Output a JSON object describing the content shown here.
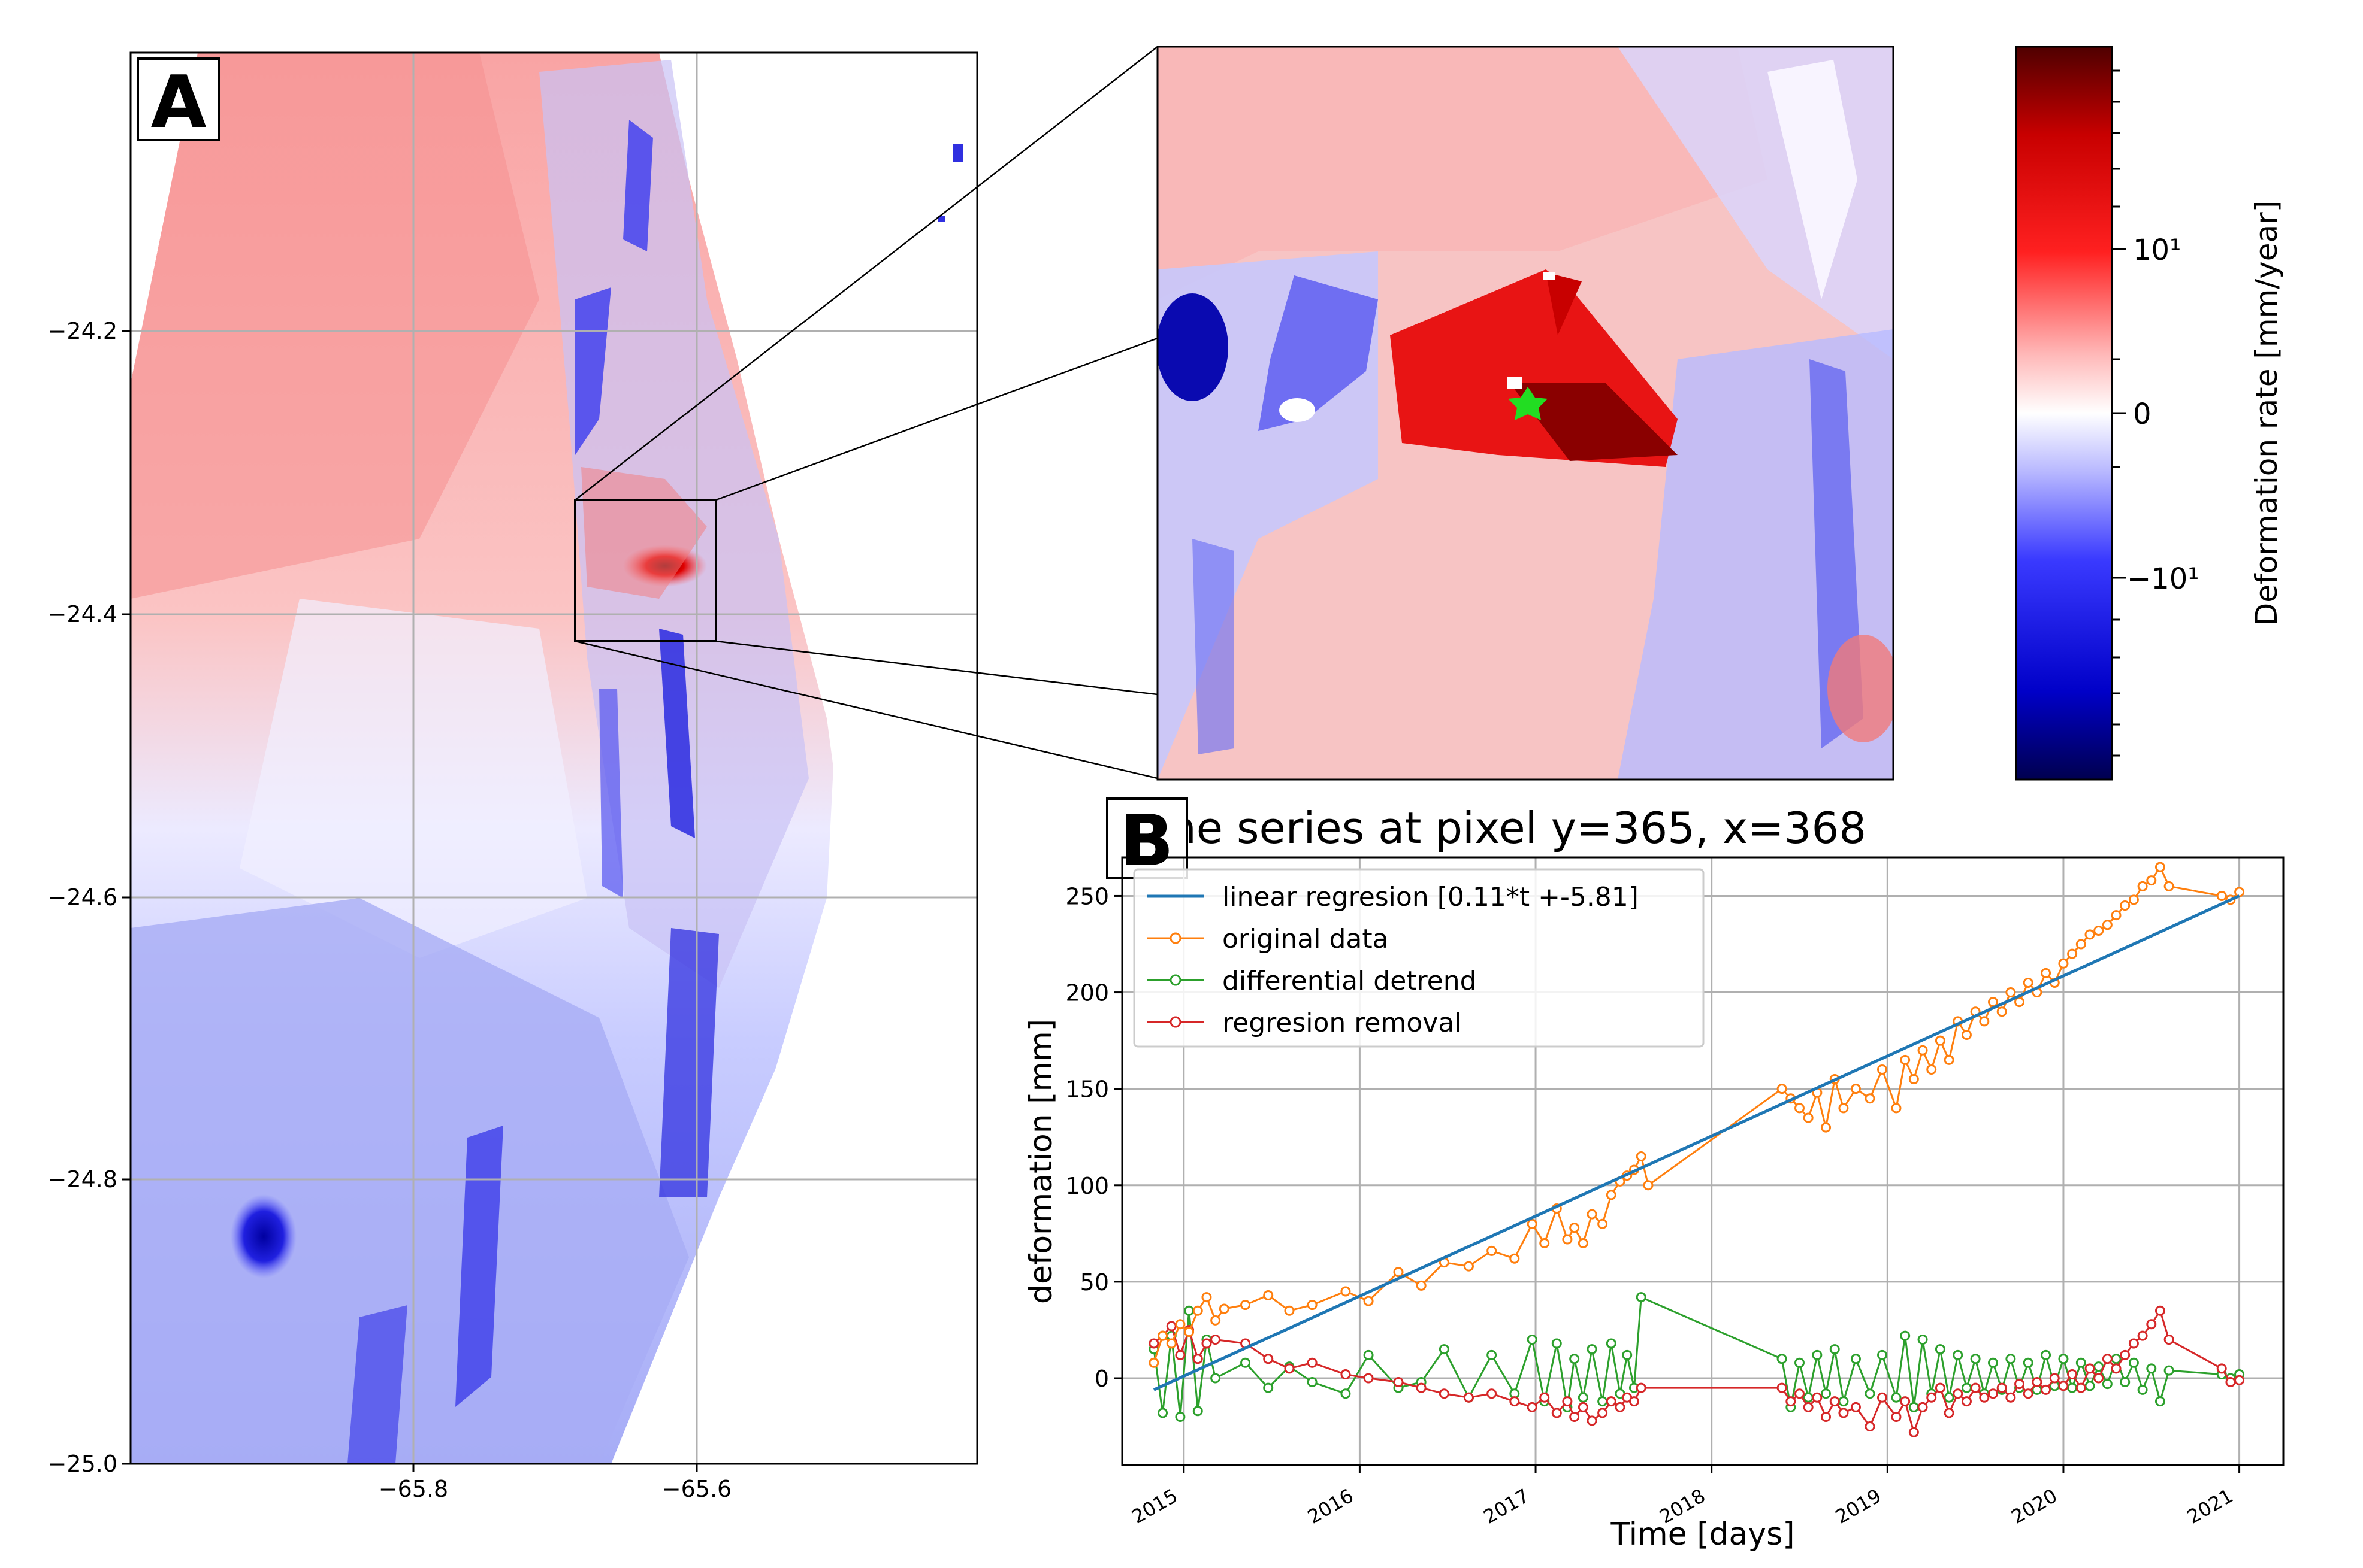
{
  "colors": {
    "red": "#d40000",
    "blue": "#1a1aff",
    "regression_line": "#1f77b4",
    "original": "#ff7f0e",
    "differential": "#2ca02c",
    "removal": "#d62728",
    "marker_green": "#22dd22"
  },
  "panel_a": {
    "label": "A",
    "y_ticks": [
      "−24.2",
      "−24.4",
      "−24.6",
      "−24.8",
      "−25.0"
    ],
    "x_ticks": [
      "−65.8",
      "−65.6"
    ]
  },
  "colorbar": {
    "label": "Deformation rate [mm/year]",
    "ticks": [
      "10¹",
      "0",
      "−10¹"
    ],
    "scale": "symlog"
  },
  "chart_data": {
    "type": "line",
    "panel_label": "B",
    "title": "Time series at pixel y=365, x=368",
    "xlabel": "Time [days]",
    "ylabel": "deformation [mm]",
    "x_ticks": [
      "2015",
      "2016",
      "2017",
      "2018",
      "2019",
      "2020",
      "2021"
    ],
    "xlim": [
      2014.65,
      2021.25
    ],
    "ylim": [
      -45,
      270
    ],
    "y_ticks": [
      0,
      50,
      100,
      150,
      200,
      250
    ],
    "grid": true,
    "legend": "upper-left",
    "series": [
      {
        "name": "linear regresion [0.11*t +-5.81]",
        "marker": "none",
        "x": [
          2014.83,
          2021.0
        ],
        "y": [
          -6,
          250
        ]
      },
      {
        "name": "original data",
        "marker": "circle",
        "x": [
          2014.83,
          2014.88,
          2014.93,
          2014.98,
          2015.03,
          2015.08,
          2015.13,
          2015.18,
          2015.23,
          2015.35,
          2015.48,
          2015.6,
          2015.73,
          2015.92,
          2016.05,
          2016.22,
          2016.35,
          2016.48,
          2016.62,
          2016.75,
          2016.88,
          2016.98,
          2017.05,
          2017.12,
          2017.18,
          2017.22,
          2017.27,
          2017.32,
          2017.38,
          2017.43,
          2017.48,
          2017.52,
          2017.56,
          2017.6,
          2017.64,
          2018.4,
          2018.45,
          2018.5,
          2018.55,
          2018.6,
          2018.65,
          2018.7,
          2018.75,
          2018.82,
          2018.9,
          2018.97,
          2019.05,
          2019.1,
          2019.15,
          2019.2,
          2019.25,
          2019.3,
          2019.35,
          2019.4,
          2019.45,
          2019.5,
          2019.55,
          2019.6,
          2019.65,
          2019.7,
          2019.75,
          2019.8,
          2019.85,
          2019.9,
          2019.95,
          2020.0,
          2020.05,
          2020.1,
          2020.15,
          2020.2,
          2020.25,
          2020.3,
          2020.35,
          2020.4,
          2020.45,
          2020.5,
          2020.55,
          2020.6,
          2020.9,
          2020.95,
          2021.0
        ],
        "y": [
          8,
          22,
          18,
          28,
          24,
          35,
          42,
          30,
          36,
          38,
          43,
          35,
          38,
          45,
          40,
          55,
          48,
          60,
          58,
          66,
          62,
          80,
          70,
          88,
          72,
          78,
          70,
          85,
          80,
          95,
          102,
          105,
          108,
          115,
          100,
          150,
          145,
          140,
          135,
          148,
          130,
          155,
          140,
          150,
          145,
          160,
          140,
          165,
          155,
          170,
          160,
          175,
          165,
          185,
          178,
          190,
          185,
          195,
          190,
          200,
          195,
          205,
          200,
          210,
          205,
          215,
          220,
          225,
          230,
          232,
          235,
          240,
          245,
          248,
          255,
          258,
          265,
          255,
          250,
          248,
          252
        ]
      },
      {
        "name": "differential detrend",
        "marker": "circle",
        "x": [
          2014.83,
          2014.88,
          2014.93,
          2014.98,
          2015.03,
          2015.08,
          2015.13,
          2015.18,
          2015.35,
          2015.48,
          2015.6,
          2015.73,
          2015.92,
          2016.05,
          2016.22,
          2016.35,
          2016.48,
          2016.62,
          2016.75,
          2016.88,
          2016.98,
          2017.05,
          2017.12,
          2017.18,
          2017.22,
          2017.27,
          2017.32,
          2017.38,
          2017.43,
          2017.48,
          2017.52,
          2017.56,
          2017.6,
          2018.4,
          2018.45,
          2018.5,
          2018.55,
          2018.6,
          2018.65,
          2018.7,
          2018.75,
          2018.82,
          2018.9,
          2018.97,
          2019.05,
          2019.1,
          2019.15,
          2019.2,
          2019.25,
          2019.3,
          2019.35,
          2019.4,
          2019.45,
          2019.5,
          2019.55,
          2019.6,
          2019.65,
          2019.7,
          2019.75,
          2019.8,
          2019.85,
          2019.9,
          2019.95,
          2020.0,
          2020.05,
          2020.1,
          2020.15,
          2020.2,
          2020.25,
          2020.3,
          2020.35,
          2020.4,
          2020.45,
          2020.5,
          2020.55,
          2020.6,
          2020.9,
          2020.95,
          2021.0
        ],
        "y": [
          15,
          -18,
          22,
          -20,
          35,
          -17,
          20,
          0,
          8,
          -5,
          6,
          -2,
          -8,
          12,
          -5,
          -2,
          15,
          -10,
          12,
          -8,
          20,
          -12,
          18,
          -15,
          10,
          -10,
          15,
          -12,
          18,
          -8,
          12,
          -5,
          42,
          10,
          -15,
          8,
          -10,
          12,
          -8,
          15,
          -12,
          10,
          -8,
          12,
          -10,
          22,
          -15,
          20,
          -8,
          15,
          -10,
          12,
          -5,
          10,
          -8,
          8,
          -6,
          10,
          -5,
          8,
          -6,
          12,
          -4,
          10,
          -5,
          8,
          -4,
          6,
          -3,
          10,
          -2,
          8,
          -6,
          5,
          -12,
          4,
          2,
          0,
          2
        ]
      },
      {
        "name": "regresion removal",
        "marker": "circle",
        "x": [
          2014.83,
          2014.88,
          2014.93,
          2014.98,
          2015.03,
          2015.08,
          2015.13,
          2015.18,
          2015.35,
          2015.48,
          2015.6,
          2015.73,
          2015.92,
          2016.05,
          2016.22,
          2016.35,
          2016.48,
          2016.62,
          2016.75,
          2016.88,
          2016.98,
          2017.05,
          2017.12,
          2017.18,
          2017.22,
          2017.27,
          2017.32,
          2017.38,
          2017.43,
          2017.48,
          2017.52,
          2017.56,
          2017.6,
          2018.4,
          2018.45,
          2018.5,
          2018.55,
          2018.6,
          2018.65,
          2018.7,
          2018.75,
          2018.82,
          2018.9,
          2018.97,
          2019.05,
          2019.1,
          2019.15,
          2019.2,
          2019.25,
          2019.3,
          2019.35,
          2019.4,
          2019.45,
          2019.5,
          2019.55,
          2019.6,
          2019.65,
          2019.7,
          2019.75,
          2019.8,
          2019.85,
          2019.9,
          2019.95,
          2020.0,
          2020.05,
          2020.1,
          2020.15,
          2020.2,
          2020.25,
          2020.3,
          2020.35,
          2020.4,
          2020.45,
          2020.5,
          2020.55,
          2020.6,
          2020.9,
          2020.95,
          2021.0
        ],
        "y": [
          18,
          22,
          27,
          12,
          25,
          10,
          18,
          20,
          18,
          10,
          5,
          8,
          2,
          0,
          -2,
          -5,
          -8,
          -10,
          -8,
          -12,
          -15,
          -10,
          -18,
          -12,
          -20,
          -15,
          -22,
          -18,
          -12,
          -15,
          -10,
          -12,
          -5,
          -5,
          -12,
          -8,
          -15,
          -10,
          -20,
          -12,
          -18,
          -15,
          -25,
          -10,
          -20,
          -12,
          -28,
          -15,
          -10,
          -5,
          -18,
          -8,
          -12,
          -5,
          -10,
          -8,
          -5,
          -10,
          -3,
          -8,
          -2,
          -6,
          0,
          -4,
          2,
          -5,
          5,
          0,
          10,
          5,
          12,
          18,
          22,
          28,
          35,
          20,
          5,
          -2,
          -1
        ]
      }
    ]
  }
}
